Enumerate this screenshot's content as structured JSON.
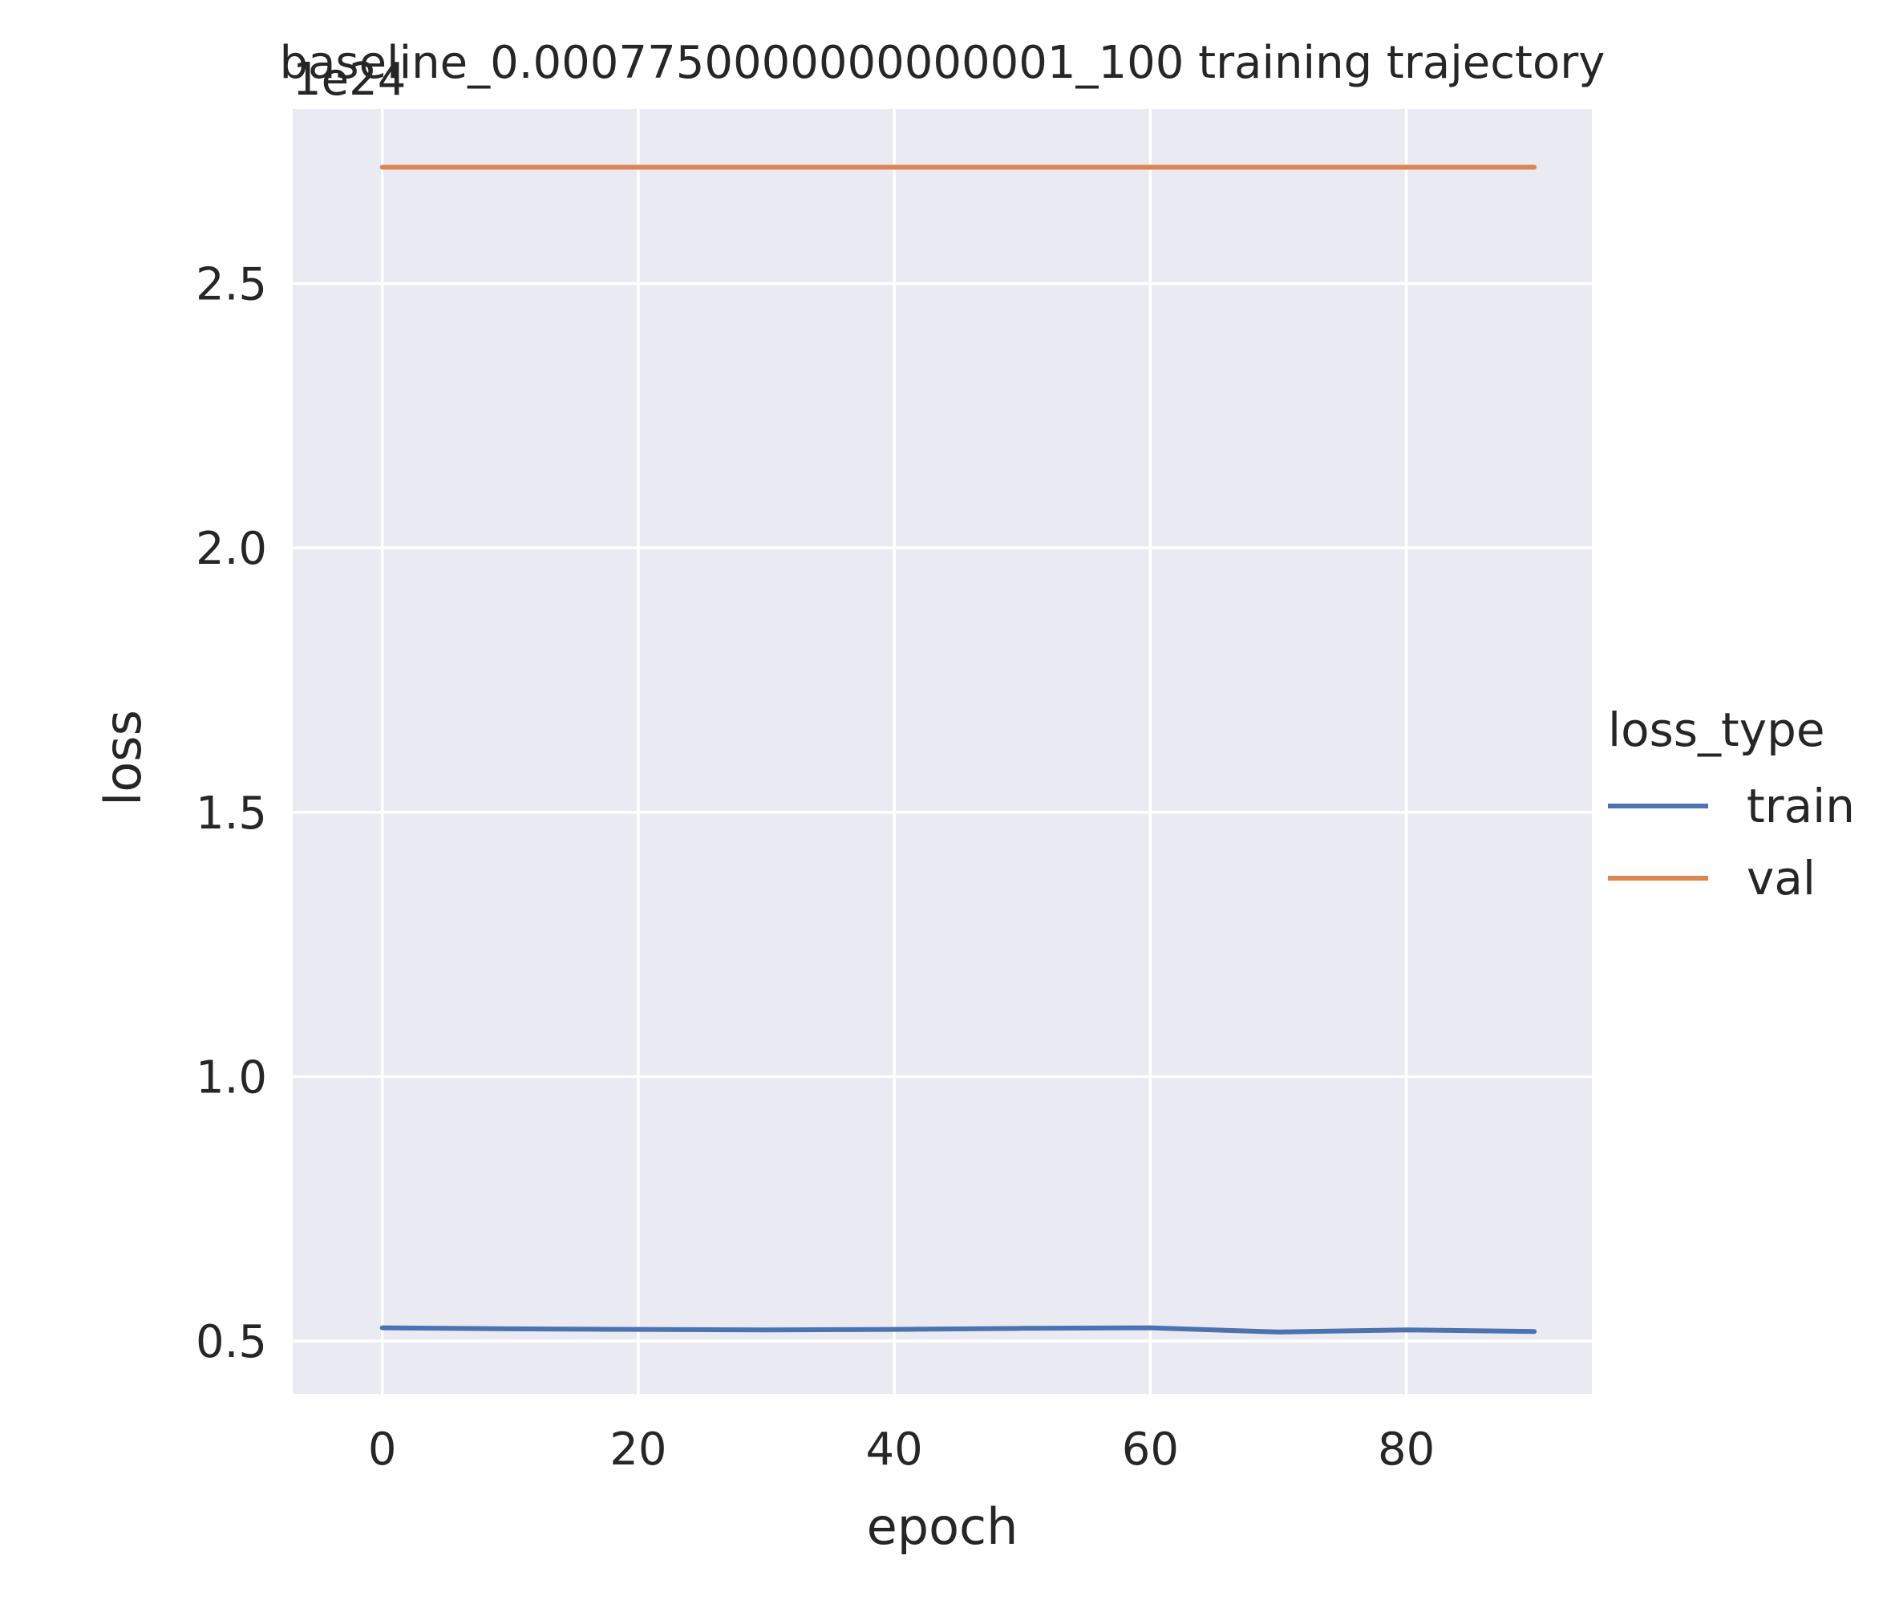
{
  "chart_data": {
    "type": "line",
    "title": "baseline_0.0007750000000000001_100 training trajectory",
    "xlabel": "epoch",
    "ylabel": "loss",
    "offset_label": "1e24",
    "xlim": [
      -7,
      94.5
    ],
    "ylim": [
      0.4,
      2.83
    ],
    "x_ticks": [
      0,
      20,
      40,
      60,
      80
    ],
    "y_ticks": [
      0.5,
      1.0,
      1.5,
      2.0,
      2.5
    ],
    "y_tick_labels": [
      "0.5",
      "1.0",
      "1.5",
      "2.0",
      "2.5"
    ],
    "grid": true,
    "legend": {
      "title": "loss_type",
      "placement": "right"
    },
    "x": [
      0,
      10,
      20,
      30,
      40,
      50,
      60,
      70,
      80,
      90
    ],
    "series": [
      {
        "name": "train",
        "color": "#4c72b0",
        "values": [
          0.525,
          0.523,
          0.522,
          0.521,
          0.522,
          0.524,
          0.525,
          0.517,
          0.521,
          0.518
        ]
      },
      {
        "name": "val",
        "color": "#dd8452",
        "values": [
          2.72,
          2.72,
          2.72,
          2.72,
          2.72,
          2.72,
          2.72,
          2.72,
          2.72,
          2.72
        ]
      }
    ]
  }
}
